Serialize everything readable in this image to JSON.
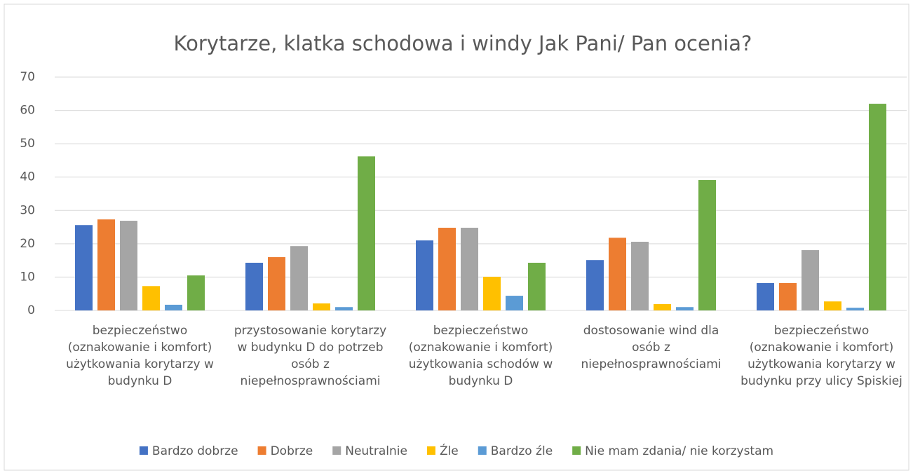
{
  "chart_data": {
    "type": "bar",
    "title": "Korytarze, klatka schodowa i windy Jak Pani/ Pan ocenia?",
    "categories": [
      "bezpieczeństwo (oznakowanie i komfort) użytkowania korytarzy w budynku D",
      "przystosowanie korytarzy w budynku D do potrzeb osób z niepełnosprawnościami",
      "bezpieczeństwo (oznakowanie i komfort) użytkowania schodów w budynku D",
      "dostosowanie wind dla osób z niepełnosprawnościami",
      "bezpieczeństwo (oznakowanie i komfort) użytkowania korytarzy w budynku przy ulicy Spiskiej"
    ],
    "series": [
      {
        "name": "Bardzo dobrze",
        "color": "#4472c4",
        "values": [
          25.6,
          14.3,
          21,
          15.1,
          8.2
        ]
      },
      {
        "name": "Dobrze",
        "color": "#ed7d31",
        "values": [
          27.3,
          16,
          24.8,
          21.8,
          8.2
        ]
      },
      {
        "name": "Neutralnie",
        "color": "#a5a5a5",
        "values": [
          26.9,
          19.3,
          24.8,
          20.6,
          18.1
        ]
      },
      {
        "name": "Źle",
        "color": "#ffc000",
        "values": [
          7.3,
          2.1,
          10.1,
          1.9,
          2.7
        ]
      },
      {
        "name": "Bardzo źle",
        "color": "#5b9bd5",
        "values": [
          1.7,
          1,
          4.4,
          1,
          0.8
        ]
      },
      {
        "name": "Nie mam zdania/ nie korzystam",
        "color": "#70ad47",
        "values": [
          10.5,
          46.2,
          14.3,
          39.1,
          62
        ]
      }
    ],
    "ylim": [
      0,
      70
    ],
    "yticks": [
      0,
      10,
      20,
      30,
      40,
      50,
      60,
      70
    ],
    "grid": true,
    "legend": "bottom"
  }
}
